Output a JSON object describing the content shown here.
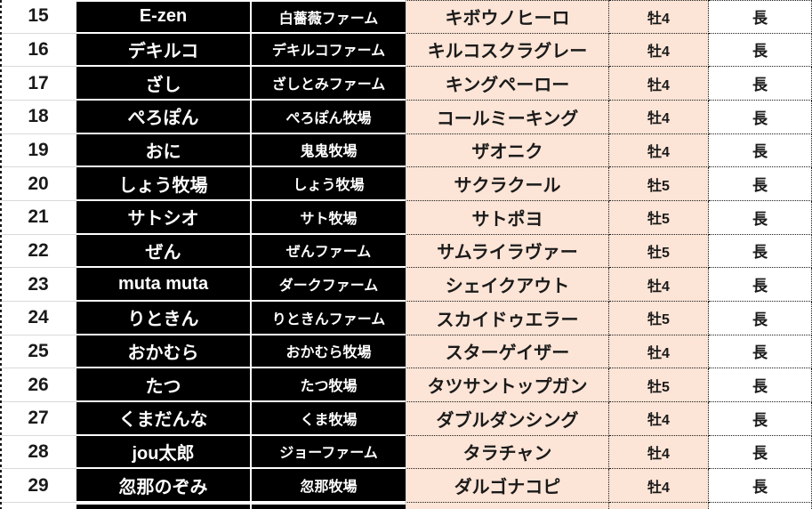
{
  "table": {
    "description_columns": [
      "row_number",
      "owner_name",
      "farm_name",
      "horse_name",
      "sex_age",
      "distance_aptitude"
    ],
    "rows": [
      {
        "no": "15",
        "owner": "E-zen",
        "farm": "白薔薇ファーム",
        "horse": "キボウノヒーロ",
        "sex_age": "牡4",
        "distance": "長"
      },
      {
        "no": "16",
        "owner": "デキルコ",
        "farm": "デキルコファーム",
        "horse": "キルコスクラグレー",
        "sex_age": "牡4",
        "distance": "長"
      },
      {
        "no": "17",
        "owner": "ざし",
        "farm": "ざしとみファーム",
        "horse": "キングペーロー",
        "sex_age": "牡4",
        "distance": "長"
      },
      {
        "no": "18",
        "owner": "ぺろぽん",
        "farm": "ぺろぽん牧場",
        "horse": "コールミーキング",
        "sex_age": "牡4",
        "distance": "長"
      },
      {
        "no": "19",
        "owner": "おに",
        "farm": "鬼鬼牧場",
        "horse": "ザオニク",
        "sex_age": "牡4",
        "distance": "長"
      },
      {
        "no": "20",
        "owner": "しょう牧場",
        "farm": "しょう牧場",
        "horse": "サクラクール",
        "sex_age": "牡5",
        "distance": "長"
      },
      {
        "no": "21",
        "owner": "サトシオ",
        "farm": "サト牧場",
        "horse": "サトポヨ",
        "sex_age": "牡5",
        "distance": "長"
      },
      {
        "no": "22",
        "owner": "ぜん",
        "farm": "ぜんファーム",
        "horse": "サムライラヴァー",
        "sex_age": "牡5",
        "distance": "長"
      },
      {
        "no": "23",
        "owner": "muta muta",
        "farm": "ダークファーム",
        "horse": "シェイクアウト",
        "sex_age": "牡4",
        "distance": "長"
      },
      {
        "no": "24",
        "owner": "りときん",
        "farm": "りときんファーム",
        "horse": "スカイドゥエラー",
        "sex_age": "牡5",
        "distance": "長"
      },
      {
        "no": "25",
        "owner": "おかむら",
        "farm": "おかむら牧場",
        "horse": "スターゲイザー",
        "sex_age": "牡4",
        "distance": "長"
      },
      {
        "no": "26",
        "owner": "たつ",
        "farm": "たつ牧場",
        "horse": "タツサントップガン",
        "sex_age": "牡5",
        "distance": "長"
      },
      {
        "no": "27",
        "owner": "くまだんな",
        "farm": "くま牧場",
        "horse": "ダブルダンシング",
        "sex_age": "牡4",
        "distance": "長"
      },
      {
        "no": "28",
        "owner": "jou太郎",
        "farm": "ジョーファーム",
        "horse": "タラチャン",
        "sex_age": "牡4",
        "distance": "長"
      },
      {
        "no": "29",
        "owner": "忽那のぞみ",
        "farm": "忽那牧場",
        "horse": "ダルゴナコピ",
        "sex_age": "牡4",
        "distance": "長"
      }
    ]
  },
  "colors": {
    "cell_black": "#000000",
    "cell_peach": "#fce4d6",
    "cell_white": "#ffffff",
    "gridline": "#d9d9d9",
    "dotted_border": "#1a1a1a",
    "text_on_black": "#ffffff",
    "text_on_light": "#1a1a1a"
  }
}
